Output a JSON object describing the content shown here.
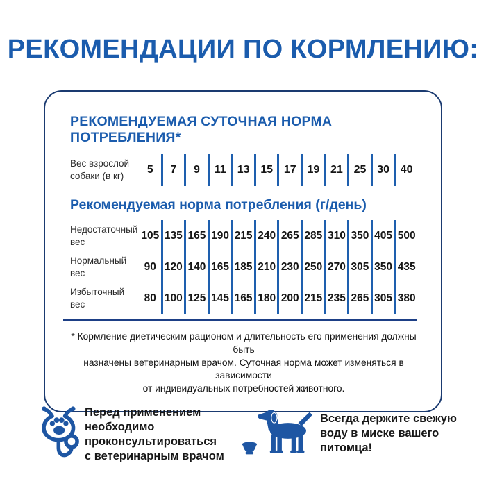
{
  "page": {
    "title": "РЕКОМЕНДАЦИИ ПО КОРМЛЕНИЮ:"
  },
  "panel": {
    "heading": "РЕКОМЕНДУЕМАЯ СУТОЧНАЯ НОРМА ПОТРЕБЛЕНИЯ*",
    "weight_label": "Вес взрослой\nсобаки (в кг)",
    "weight_values": [
      "5",
      "7",
      "9",
      "11",
      "13",
      "15",
      "17",
      "19",
      "21",
      "25",
      "30",
      "40"
    ],
    "subheading": "Рекомендуемая норма потребления (г/день)",
    "rows": [
      {
        "label": "Недостаточный\nвес",
        "values": [
          "105",
          "135",
          "165",
          "190",
          "215",
          "240",
          "265",
          "285",
          "310",
          "350",
          "405",
          "500"
        ]
      },
      {
        "label": "Нормальный\nвес",
        "values": [
          "90",
          "120",
          "140",
          "165",
          "185",
          "210",
          "230",
          "250",
          "270",
          "305",
          "350",
          "435"
        ]
      },
      {
        "label": "Избыточный\nвес",
        "values": [
          "80",
          "100",
          "125",
          "145",
          "165",
          "180",
          "200",
          "215",
          "235",
          "265",
          "305",
          "380"
        ]
      }
    ],
    "footnote": "* Кормление диетическим рационом и длительность его применения должны быть\nназначены ветеринарным врачом. Суточная норма может изменяться в зависимости\nот индивидуальных потребностей животного."
  },
  "advice": {
    "vet": {
      "icon": "stethoscope-paw-icon",
      "text": "Перед применением\nнеобходимо\nпроконсультироваться\nс ветеринарным врачом"
    },
    "water": {
      "icon": "dog-with-bowl-icon",
      "text": "Всегда держите свежую\nводу в миске вашего\nпитомца!"
    }
  },
  "chart_data": {
    "type": "table",
    "title": "Рекомендуемая норма потребления (г/день)",
    "categories_label": "Вес взрослой собаки (в кг)",
    "categories": [
      5,
      7,
      9,
      11,
      13,
      15,
      17,
      19,
      21,
      25,
      30,
      40
    ],
    "series": [
      {
        "name": "Недостаточный вес",
        "values": [
          105,
          135,
          165,
          190,
          215,
          240,
          265,
          285,
          310,
          350,
          405,
          500
        ]
      },
      {
        "name": "Нормальный вес",
        "values": [
          90,
          120,
          140,
          165,
          185,
          210,
          230,
          250,
          270,
          305,
          350,
          435
        ]
      },
      {
        "name": "Избыточный вес",
        "values": [
          80,
          100,
          125,
          145,
          165,
          180,
          200,
          215,
          235,
          265,
          305,
          380
        ]
      }
    ]
  },
  "colors": {
    "heading_blue": "#1b5cad",
    "divider_blue": "#1e5fae",
    "border_navy": "#1a3a70",
    "separator": "#1d3f86",
    "icon_blue": "#1e56a3"
  }
}
